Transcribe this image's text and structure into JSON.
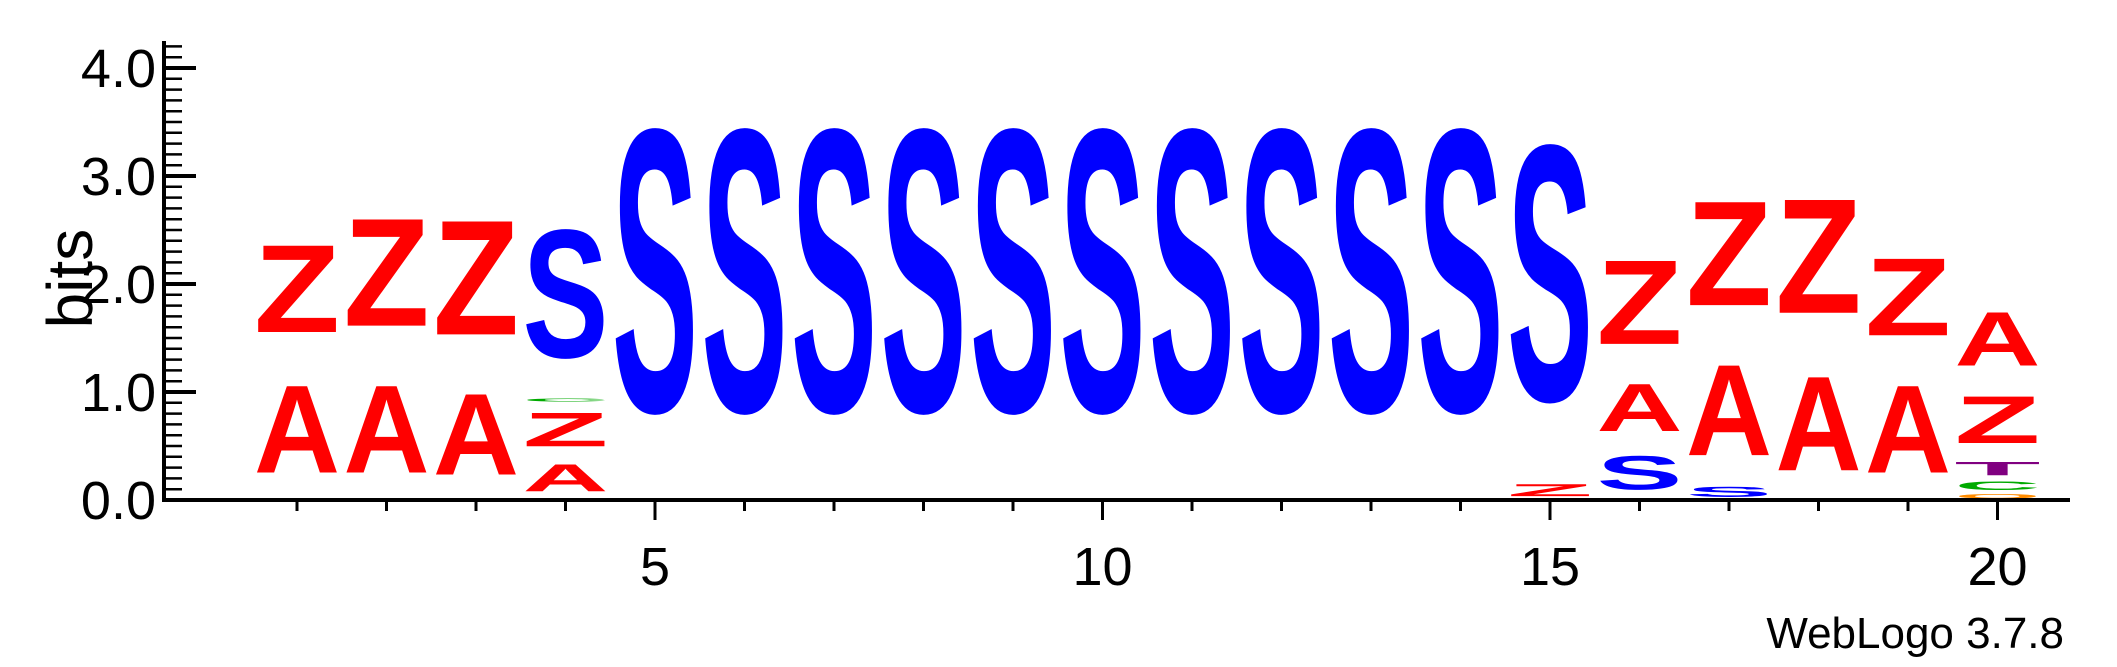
{
  "chart_data": {
    "type": "sequence-logo",
    "ylabel": "bits",
    "ylim": [
      0,
      4.3
    ],
    "y_ticks": [
      "0.0",
      "1.0",
      "2.0",
      "3.0",
      "4.0"
    ],
    "x_tick_labels": [
      "5",
      "10",
      "15",
      "20"
    ],
    "footer": "WebLogo 3.7.8",
    "colors": {
      "Z": "#ff0000",
      "A": "#ff0000",
      "S": "#0000ff",
      "T": "#800080",
      "C": "#00aa00",
      "O": "#ff8c00"
    },
    "positions": [
      {
        "pos": 1,
        "stack": [
          {
            "letter": "A",
            "bits": 1.3
          },
          {
            "letter": "Z",
            "bits": 1.3
          }
        ]
      },
      {
        "pos": 2,
        "stack": [
          {
            "letter": "A",
            "bits": 1.3
          },
          {
            "letter": "Z",
            "bits": 1.6
          }
        ]
      },
      {
        "pos": 3,
        "stack": [
          {
            "letter": "A",
            "bits": 1.2
          },
          {
            "letter": "Z",
            "bits": 1.7
          }
        ]
      },
      {
        "pos": 4,
        "stack": [
          {
            "letter": "A",
            "bits": 0.4
          },
          {
            "letter": "Z",
            "bits": 0.5
          },
          {
            "letter": "C",
            "bits": 0.05
          },
          {
            "letter": "S",
            "bits": 1.9
          }
        ]
      },
      {
        "pos": 5,
        "stack": [
          {
            "letter": "S",
            "bits": 4.2
          }
        ]
      },
      {
        "pos": 6,
        "stack": [
          {
            "letter": "S",
            "bits": 4.2
          }
        ]
      },
      {
        "pos": 7,
        "stack": [
          {
            "letter": "S",
            "bits": 4.2
          }
        ]
      },
      {
        "pos": 8,
        "stack": [
          {
            "letter": "S",
            "bits": 4.2
          }
        ]
      },
      {
        "pos": 9,
        "stack": [
          {
            "letter": "S",
            "bits": 4.2
          }
        ]
      },
      {
        "pos": 10,
        "stack": [
          {
            "letter": "S",
            "bits": 4.2
          }
        ]
      },
      {
        "pos": 11,
        "stack": [
          {
            "letter": "S",
            "bits": 4.2
          }
        ]
      },
      {
        "pos": 12,
        "stack": [
          {
            "letter": "S",
            "bits": 4.2
          }
        ]
      },
      {
        "pos": 13,
        "stack": [
          {
            "letter": "S",
            "bits": 4.2
          }
        ]
      },
      {
        "pos": 14,
        "stack": [
          {
            "letter": "S",
            "bits": 4.2
          }
        ]
      },
      {
        "pos": 15,
        "stack": [
          {
            "letter": "Z",
            "bits": 0.18
          },
          {
            "letter": "S",
            "bits": 3.8
          }
        ]
      },
      {
        "pos": 16,
        "stack": [
          {
            "letter": "S",
            "bits": 0.5
          },
          {
            "letter": "A",
            "bits": 0.7
          },
          {
            "letter": "Z",
            "bits": 1.25
          }
        ]
      },
      {
        "pos": 17,
        "stack": [
          {
            "letter": "S",
            "bits": 0.15
          },
          {
            "letter": "A",
            "bits": 1.35
          },
          {
            "letter": "Z",
            "bits": 1.55
          }
        ]
      },
      {
        "pos": 18,
        "stack": [
          {
            "letter": "A",
            "bits": 1.4
          },
          {
            "letter": "Z",
            "bits": 1.7
          }
        ]
      },
      {
        "pos": 19,
        "stack": [
          {
            "letter": "A",
            "bits": 1.3
          },
          {
            "letter": "Z",
            "bits": 1.15
          }
        ]
      },
      {
        "pos": 20,
        "stack": [
          {
            "letter": "O",
            "bits": 0.07
          },
          {
            "letter": "C",
            "bits": 0.12
          },
          {
            "letter": "T",
            "bits": 0.2
          },
          {
            "letter": "Z",
            "bits": 0.7
          },
          {
            "letter": "A",
            "bits": 0.8
          }
        ]
      }
    ]
  }
}
